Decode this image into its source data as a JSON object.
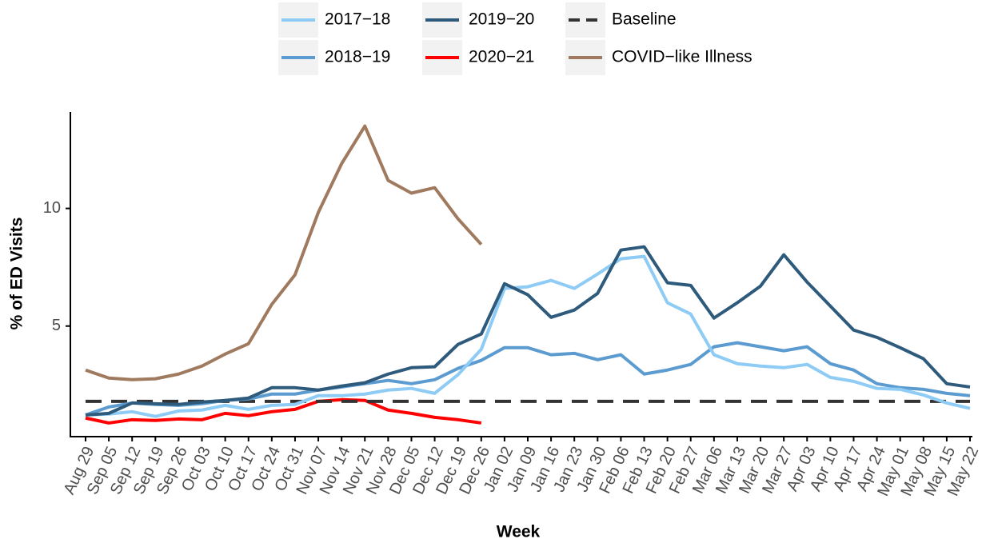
{
  "chart_data": {
    "type": "line",
    "x_label": "Week",
    "y_label": "% of ED Visits",
    "categories": [
      "Aug 29",
      "Sep 05",
      "Sep 12",
      "Sep 19",
      "Sep 26",
      "Oct 03",
      "Oct 10",
      "Oct 17",
      "Oct 24",
      "Oct 31",
      "Nov 07",
      "Nov 14",
      "Nov 21",
      "Nov 28",
      "Dec 05",
      "Dec 12",
      "Dec 19",
      "Dec 26",
      "Jan 02",
      "Jan 09",
      "Jan 16",
      "Jan 23",
      "Jan 30",
      "Feb 06",
      "Feb 13",
      "Feb 20",
      "Feb 27",
      "Mar 06",
      "Mar 13",
      "Mar 20",
      "Mar 27",
      "Apr 03",
      "Apr 10",
      "Apr 17",
      "Apr 24",
      "May 01",
      "May 08",
      "May 15",
      "May 22"
    ],
    "series": [
      {
        "name": "2017−18",
        "color": "#8ecbf5",
        "values": [
          1.22,
          1.26,
          1.36,
          1.16,
          1.39,
          1.43,
          1.63,
          1.46,
          1.63,
          1.67,
          2.04,
          2.04,
          2.11,
          2.28,
          2.35,
          2.14,
          2.93,
          4.01,
          6.6,
          6.67,
          6.94,
          6.6,
          7.21,
          7.86,
          7.96,
          5.99,
          5.51,
          3.78,
          3.4,
          3.3,
          3.23,
          3.37,
          2.82,
          2.65,
          2.35,
          2.31,
          2.07,
          1.73,
          1.5
        ]
      },
      {
        "name": "2018−19",
        "color": "#5b9bd0",
        "values": [
          1.22,
          1.56,
          1.73,
          1.67,
          1.63,
          1.7,
          1.84,
          1.9,
          2.11,
          2.11,
          2.28,
          2.41,
          2.55,
          2.69,
          2.55,
          2.72,
          3.2,
          3.54,
          4.08,
          4.08,
          3.78,
          3.84,
          3.57,
          3.78,
          2.96,
          3.13,
          3.37,
          4.12,
          4.29,
          4.12,
          3.95,
          4.12,
          3.4,
          3.13,
          2.55,
          2.38,
          2.31,
          2.14,
          2.04
        ]
      },
      {
        "name": "2019−20",
        "color": "#2e5a7c",
        "values": [
          1.22,
          1.29,
          1.73,
          1.7,
          1.67,
          1.77,
          1.84,
          1.94,
          2.38,
          2.38,
          2.28,
          2.45,
          2.59,
          2.96,
          3.23,
          3.27,
          4.22,
          4.66,
          6.8,
          6.33,
          5.37,
          5.68,
          6.39,
          8.23,
          8.37,
          6.84,
          6.73,
          5.34,
          5.99,
          6.7,
          8.03,
          6.87,
          5.85,
          4.83,
          4.52,
          4.08,
          3.61,
          2.55,
          2.41
        ]
      },
      {
        "name": "2020−21",
        "color": "#ff0000",
        "values": [
          1.09,
          0.88,
          1.02,
          0.99,
          1.05,
          1.02,
          1.29,
          1.19,
          1.36,
          1.46,
          1.8,
          1.87,
          1.84,
          1.43,
          1.29,
          1.12,
          1.02,
          0.88,
          null,
          null,
          null,
          null,
          null,
          null,
          null,
          null,
          null,
          null,
          null,
          null,
          null,
          null,
          null,
          null,
          null,
          null,
          null,
          null,
          null
        ]
      },
      {
        "name": "COVID−like Illness",
        "color": "#a07a5e",
        "values": [
          3.13,
          2.79,
          2.72,
          2.76,
          2.96,
          3.3,
          3.81,
          4.25,
          5.92,
          7.18,
          9.83,
          11.9,
          13.5,
          11.19,
          10.65,
          10.88,
          9.56,
          8.47,
          null,
          null,
          null,
          null,
          null,
          null,
          null,
          null,
          null,
          null,
          null,
          null,
          null,
          null,
          null,
          null,
          null,
          null,
          null,
          null,
          null
        ]
      }
    ],
    "baseline": {
      "name": "Baseline",
      "value": 1.8,
      "color": "#333333"
    },
    "ylim": [
      0.3,
      14.1
    ],
    "yticks": [
      5,
      10
    ],
    "legend": "top",
    "grid": false
  }
}
